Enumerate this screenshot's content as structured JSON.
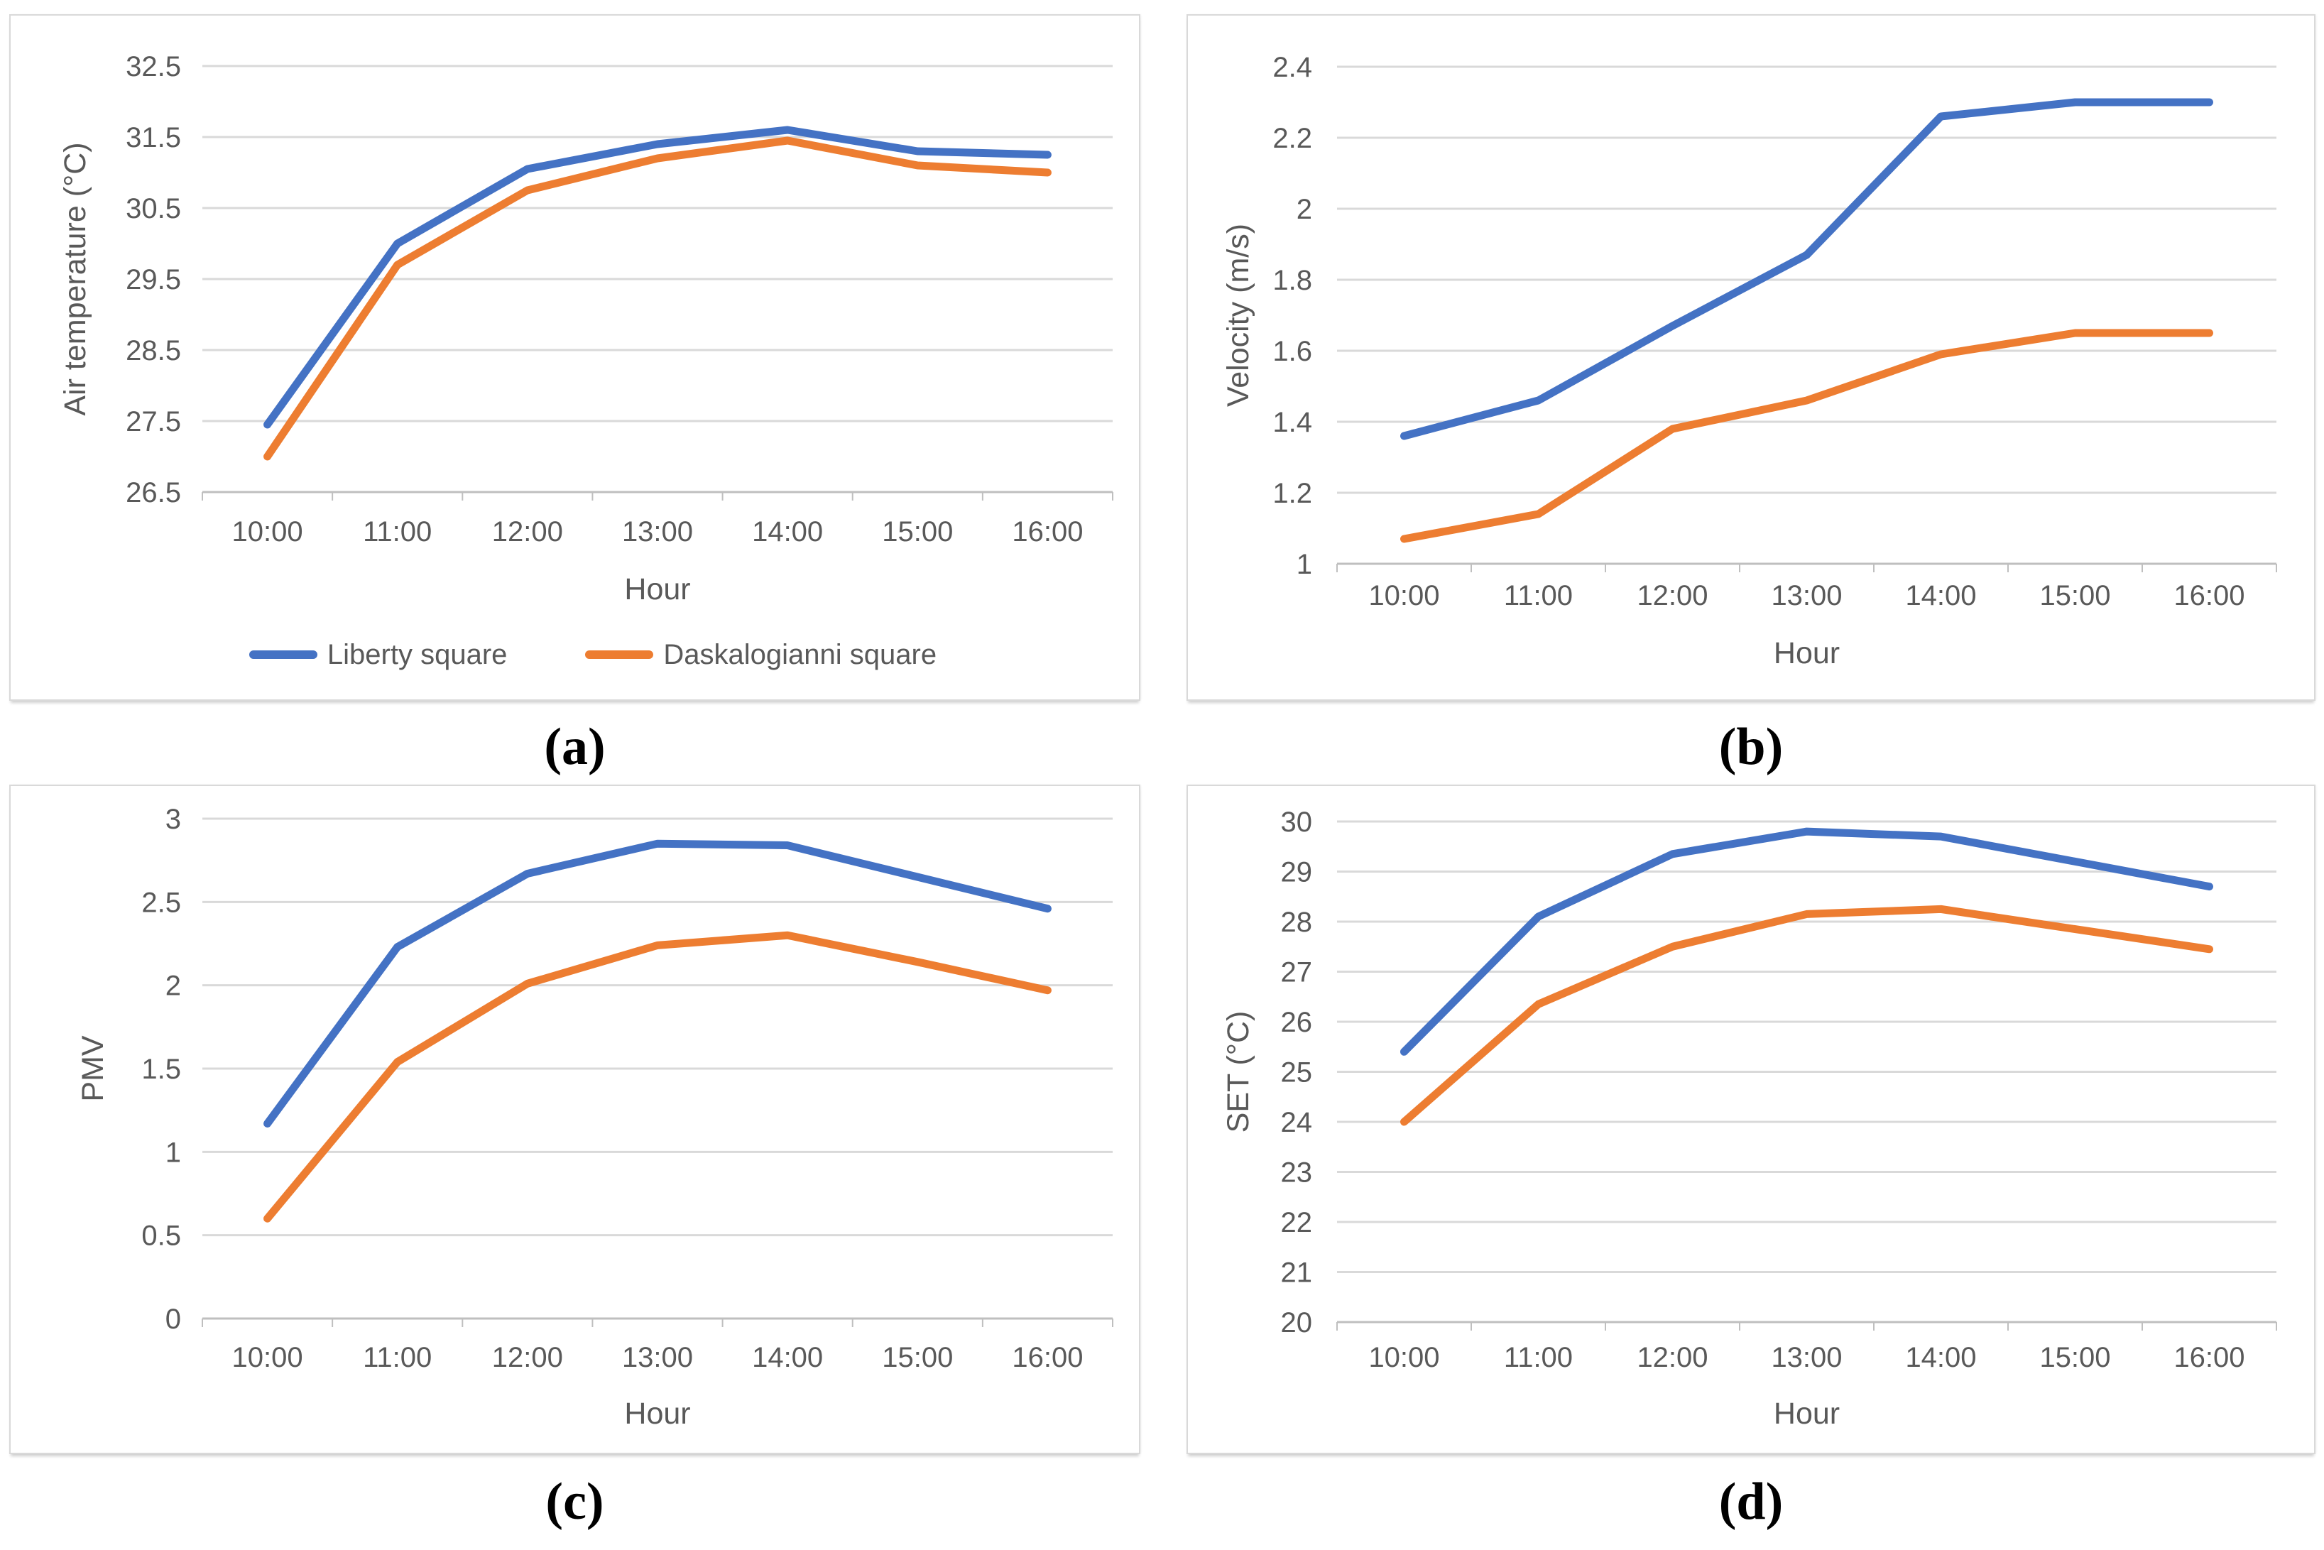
{
  "figure": {
    "background": "#ffffff",
    "description": "Four line charts comparing two squares by hour"
  },
  "colors": {
    "liberty_blue": "#4472C4",
    "daskalogianni_orange": "#ED7D31",
    "gridline": "#D9D9D9",
    "axis_line": "#BFBFBF",
    "tick_text": "#595959",
    "caption_text": "#000000",
    "panel_border": "#D9D9D9"
  },
  "legend": {
    "entries": [
      {
        "label": "Liberty square",
        "color": "#4472C4"
      },
      {
        "label": "Daskalogianni square",
        "color": "#ED7D31"
      }
    ]
  },
  "chart_data": [
    {
      "id": "a",
      "caption": "(a)",
      "type": "line",
      "title": "",
      "xlabel": "Hour",
      "ylabel": "Air temperature (°C)",
      "ylim": [
        26.5,
        32.5
      ],
      "grid": true,
      "legend_visible": true,
      "legend_position": "bottom",
      "yticks": [
        {
          "v": 32.5,
          "label": "32.5"
        },
        {
          "v": 31.5,
          "label": "31.5"
        },
        {
          "v": 30.5,
          "label": "30.5"
        },
        {
          "v": 29.5,
          "label": "29.5"
        },
        {
          "v": 28.5,
          "label": "28.5"
        },
        {
          "v": 27.5,
          "label": "27.5"
        },
        {
          "v": 26.5,
          "label": "26.5"
        }
      ],
      "categories": [
        "10:00",
        "11:00",
        "12:00",
        "13:00",
        "14:00",
        "15:00",
        "16:00"
      ],
      "series": [
        {
          "name": "Liberty square",
          "color": "#4472C4",
          "values": [
            27.45,
            30.0,
            31.05,
            31.4,
            31.6,
            31.3,
            31.25
          ]
        },
        {
          "name": "Daskalogianni square",
          "color": "#ED7D31",
          "values": [
            27.0,
            29.7,
            30.75,
            31.2,
            31.45,
            31.1,
            31.0
          ]
        }
      ]
    },
    {
      "id": "b",
      "caption": "(b)",
      "type": "line",
      "title": "",
      "xlabel": "Hour",
      "ylabel": "Velocity (m/s)",
      "ylim": [
        1.0,
        2.4
      ],
      "grid": true,
      "legend_visible": false,
      "yticks": [
        {
          "v": 2.4,
          "label": "2.4"
        },
        {
          "v": 2.2,
          "label": "2.2"
        },
        {
          "v": 2.0,
          "label": "2"
        },
        {
          "v": 1.8,
          "label": "1.8"
        },
        {
          "v": 1.6,
          "label": "1.6"
        },
        {
          "v": 1.4,
          "label": "1.4"
        },
        {
          "v": 1.2,
          "label": "1.2"
        },
        {
          "v": 1.0,
          "label": "1"
        }
      ],
      "categories": [
        "10:00",
        "11:00",
        "12:00",
        "13:00",
        "14:00",
        "15:00",
        "16:00"
      ],
      "series": [
        {
          "name": "Liberty square",
          "color": "#4472C4",
          "values": [
            1.36,
            1.46,
            1.67,
            1.87,
            2.26,
            2.3,
            2.3
          ]
        },
        {
          "name": "Daskalogianni square",
          "color": "#ED7D31",
          "values": [
            1.07,
            1.14,
            1.38,
            1.46,
            1.59,
            1.65,
            1.65
          ]
        }
      ]
    },
    {
      "id": "c",
      "caption": "(c)",
      "type": "line",
      "title": "",
      "xlabel": "Hour",
      "ylabel": "PMV",
      "ylim": [
        0,
        3
      ],
      "grid": true,
      "legend_visible": false,
      "yticks": [
        {
          "v": 3,
          "label": "3"
        },
        {
          "v": 2.5,
          "label": "2.5"
        },
        {
          "v": 2,
          "label": "2"
        },
        {
          "v": 1.5,
          "label": "1.5"
        },
        {
          "v": 1,
          "label": "1"
        },
        {
          "v": 0.5,
          "label": "0.5"
        },
        {
          "v": 0,
          "label": "0"
        }
      ],
      "categories": [
        "10:00",
        "11:00",
        "12:00",
        "13:00",
        "14:00",
        "15:00",
        "16:00"
      ],
      "series": [
        {
          "name": "Liberty square",
          "color": "#4472C4",
          "values": [
            1.17,
            2.23,
            2.67,
            2.85,
            2.84,
            2.65,
            2.46
          ]
        },
        {
          "name": "Daskalogianni square",
          "color": "#ED7D31",
          "values": [
            0.6,
            1.54,
            2.01,
            2.24,
            2.3,
            2.14,
            1.97
          ]
        }
      ]
    },
    {
      "id": "d",
      "caption": "(d)",
      "type": "line",
      "title": "",
      "xlabel": "Hour",
      "ylabel": "SET (°C)",
      "ylim": [
        20,
        30
      ],
      "grid": true,
      "legend_visible": false,
      "yticks": [
        {
          "v": 30,
          "label": "30"
        },
        {
          "v": 29,
          "label": "29"
        },
        {
          "v": 28,
          "label": "28"
        },
        {
          "v": 27,
          "label": "27"
        },
        {
          "v": 26,
          "label": "26"
        },
        {
          "v": 25,
          "label": "25"
        },
        {
          "v": 24,
          "label": "24"
        },
        {
          "v": 23,
          "label": "23"
        },
        {
          "v": 22,
          "label": "22"
        },
        {
          "v": 21,
          "label": "21"
        },
        {
          "v": 20,
          "label": "20"
        }
      ],
      "categories": [
        "10:00",
        "11:00",
        "12:00",
        "13:00",
        "14:00",
        "15:00",
        "16:00"
      ],
      "series": [
        {
          "name": "Liberty square",
          "color": "#4472C4",
          "values": [
            25.4,
            28.1,
            29.35,
            29.8,
            29.7,
            29.2,
            28.7
          ]
        },
        {
          "name": "Daskalogianni square",
          "color": "#ED7D31",
          "values": [
            24.0,
            26.35,
            27.5,
            28.15,
            28.25,
            27.85,
            27.45
          ]
        }
      ]
    }
  ]
}
